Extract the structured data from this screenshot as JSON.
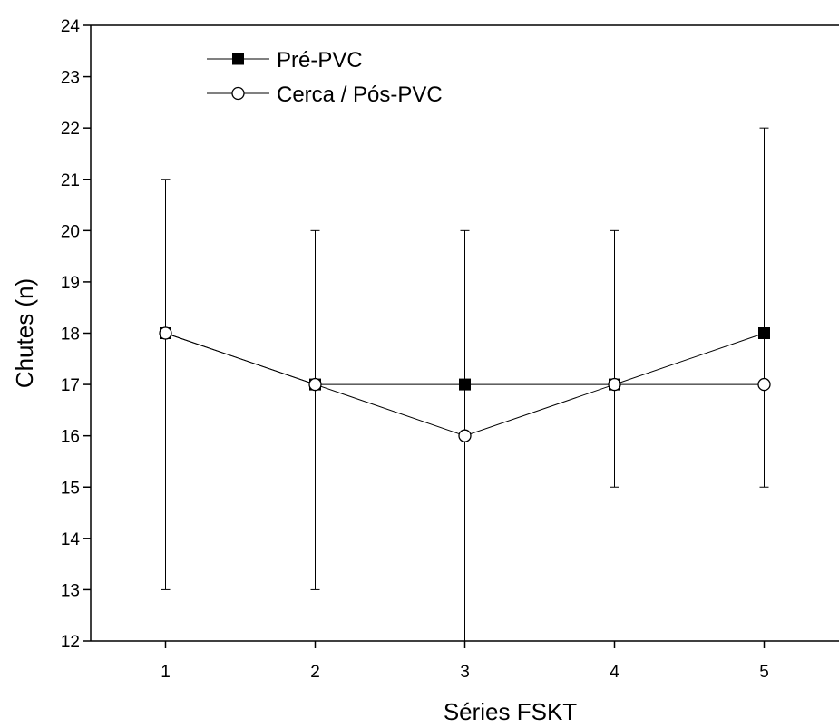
{
  "chart_data": {
    "type": "line",
    "title": "",
    "xlabel": "Séries FSKT",
    "ylabel": "Chutes (n)",
    "categories": [
      "1",
      "2",
      "3",
      "4",
      "5"
    ],
    "x": [
      1,
      2,
      3,
      4,
      5
    ],
    "xlim": [
      0.5,
      5.5
    ],
    "ylim": [
      12,
      24
    ],
    "yticks": [
      12,
      13,
      14,
      15,
      16,
      17,
      18,
      19,
      20,
      21,
      22,
      23,
      24
    ],
    "grid": false,
    "legend_position": "top-left",
    "series": [
      {
        "name": "Pré-PVC",
        "marker": "filled-square",
        "color": "#000000",
        "values": [
          18,
          17,
          17,
          17,
          18
        ]
      },
      {
        "name": "Cerca / Pós-PVC",
        "marker": "open-circle",
        "color": "#000000",
        "values": [
          18,
          17,
          16,
          17,
          17
        ]
      }
    ],
    "error_bars": [
      {
        "x": 1,
        "low": 13,
        "high": 21
      },
      {
        "x": 2,
        "low": 13,
        "high": 20
      },
      {
        "x": 3,
        "low": 12,
        "high": 20
      },
      {
        "x": 4,
        "low": 15,
        "high": 20
      },
      {
        "x": 5,
        "low": 15,
        "high": 22
      }
    ]
  }
}
